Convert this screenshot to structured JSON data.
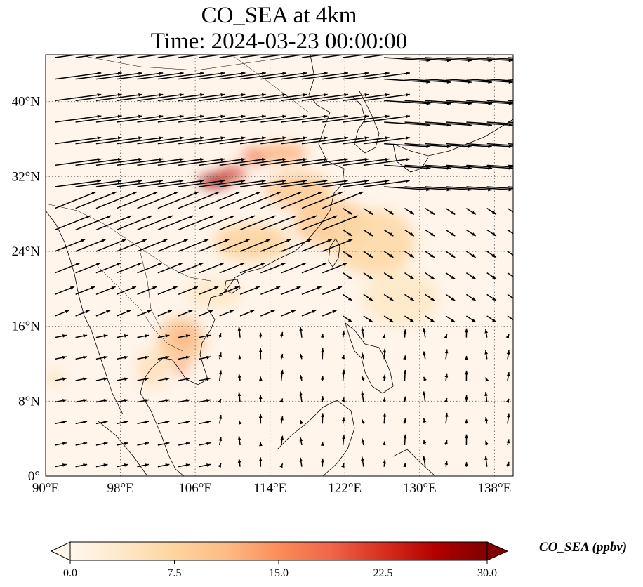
{
  "title": {
    "line1": "CO_SEA at 4km",
    "line2": "Time: 2024-03-23 00:00:00"
  },
  "map": {
    "projection": "PlateCarree",
    "lon_range": [
      90,
      140
    ],
    "lat_range": [
      0,
      45
    ],
    "lon_ticks": [
      {
        "value": 90,
        "label": "90°E"
      },
      {
        "value": 98,
        "label": "98°E"
      },
      {
        "value": 106,
        "label": "106°E"
      },
      {
        "value": 114,
        "label": "114°E"
      },
      {
        "value": 122,
        "label": "122°E"
      },
      {
        "value": 130,
        "label": "130°E"
      },
      {
        "value": 138,
        "label": "138°E"
      }
    ],
    "lat_ticks": [
      {
        "value": 0,
        "label": "0°"
      },
      {
        "value": 8,
        "label": "8°N"
      },
      {
        "value": 16,
        "label": "16°N"
      },
      {
        "value": 24,
        "label": "24°N"
      },
      {
        "value": 32,
        "label": "32°N"
      },
      {
        "value": 40,
        "label": "40°N"
      }
    ],
    "gridlines": "dotted",
    "background_color": "#fff5eb",
    "coastline_color": "#000000",
    "plume_blobs": [
      {
        "lon": 108.0,
        "lat": 31.5,
        "rlon": 1.6,
        "rlat": 0.7,
        "value": 28.0
      },
      {
        "lon": 110.0,
        "lat": 32.3,
        "rlon": 1.4,
        "rlat": 0.6,
        "value": 24.0
      },
      {
        "lon": 112.5,
        "lat": 34.2,
        "rlon": 1.5,
        "rlat": 0.8,
        "value": 17.0
      },
      {
        "lon": 115.5,
        "lat": 34.5,
        "rlon": 2.5,
        "rlat": 1.0,
        "value": 12.0
      },
      {
        "lon": 117.0,
        "lat": 30.5,
        "rlon": 3.5,
        "rlat": 2.0,
        "value": 9.0
      },
      {
        "lon": 112.0,
        "lat": 25.0,
        "rlon": 4.0,
        "rlat": 2.0,
        "value": 8.0
      },
      {
        "lon": 120.5,
        "lat": 27.0,
        "rlon": 4.0,
        "rlat": 2.5,
        "value": 9.0
      },
      {
        "lon": 125.0,
        "lat": 25.0,
        "rlon": 4.5,
        "rlat": 3.5,
        "value": 7.0
      },
      {
        "lon": 128.0,
        "lat": 19.0,
        "rlon": 4.0,
        "rlat": 3.0,
        "value": 4.0
      },
      {
        "lon": 104.5,
        "lat": 14.5,
        "rlon": 2.5,
        "rlat": 2.5,
        "value": 10.0
      },
      {
        "lon": 104.5,
        "lat": 11.5,
        "rlon": 0.6,
        "rlat": 0.6,
        "value": 16.0
      },
      {
        "lon": 104.8,
        "lat": 14.8,
        "rlon": 0.6,
        "rlat": 0.6,
        "value": 15.0
      },
      {
        "lon": 101.5,
        "lat": 11.5,
        "rlon": 1.8,
        "rlat": 2.0,
        "value": 5.0
      },
      {
        "lon": 91.0,
        "lat": 10.5,
        "rlon": 0.8,
        "rlat": 0.6,
        "value": 7.0
      },
      {
        "lon": 108.0,
        "lat": 19.5,
        "rlon": 3.0,
        "rlat": 1.6,
        "value": 4.0
      }
    ],
    "wind_grid": {
      "lon_start": 91,
      "lon_step": 2.2,
      "lat_start": 1,
      "lat_step": 2.3
    }
  },
  "colorbar": {
    "label": "CO_SEA (ppbv)",
    "cmap": "OrRd",
    "min": 0.0,
    "max": 30.0,
    "extend": "both",
    "stops": [
      "#fff7ec",
      "#fee8c8",
      "#fdd49e",
      "#fdbb84",
      "#fc8d59",
      "#ef6548",
      "#d7301f",
      "#b30000",
      "#7f0000"
    ],
    "ticks": [
      {
        "value": 0.0,
        "label": "0.0"
      },
      {
        "value": 7.5,
        "label": "7.5"
      },
      {
        "value": 15.0,
        "label": "15.0"
      },
      {
        "value": 22.5,
        "label": "22.5"
      },
      {
        "value": 30.0,
        "label": "30.0"
      }
    ]
  }
}
